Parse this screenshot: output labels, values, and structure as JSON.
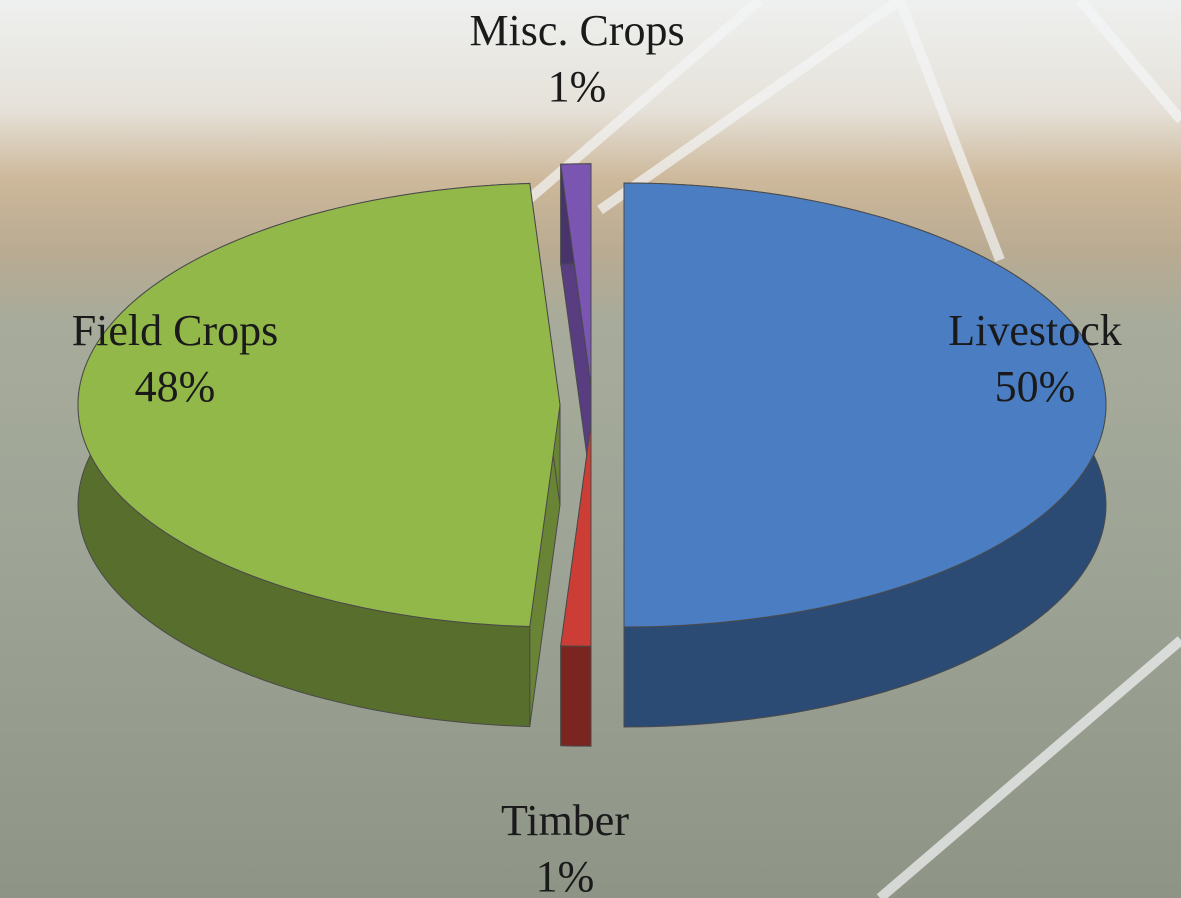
{
  "chart_data": {
    "type": "pie3d",
    "categories": [
      "Livestock",
      "Timber",
      "Field Crops",
      "Misc. Crops"
    ],
    "values": [
      50,
      1,
      48,
      1
    ],
    "value_labels": [
      "50%",
      "1%",
      "48%",
      "1%"
    ],
    "colors": [
      "#4a7dc2",
      "#cc3d35",
      "#93b84a",
      "#7a55b2"
    ],
    "start_angle": 0,
    "direction": "clockwise",
    "exploded": true
  }
}
